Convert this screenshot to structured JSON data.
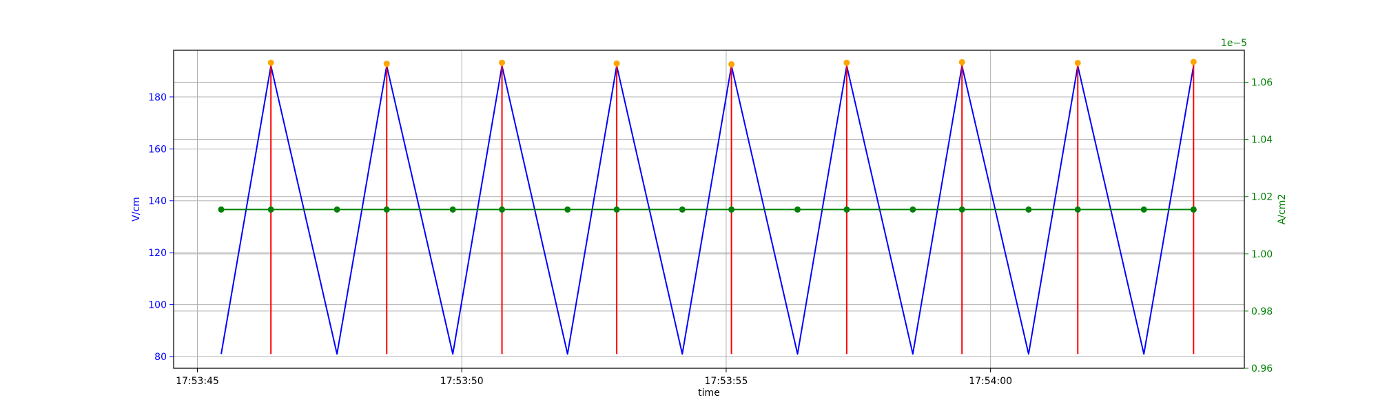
{
  "chart_data": {
    "type": "line",
    "xlabel": "time",
    "ylabel_left": "V/cm",
    "ylabel_right": "A/cm2",
    "right_axis_offset_label": "1e−5",
    "x_ticks": [
      "17:53:45",
      "17:53:50",
      "17:53:55",
      "17:54:00"
    ],
    "x_tick_seconds": [
      0,
      5,
      10,
      15
    ],
    "left_ticks": [
      80,
      100,
      120,
      140,
      160,
      180
    ],
    "right_ticks": [
      "0.96",
      "0.98",
      "1.00",
      "1.02",
      "1.04",
      "1.06"
    ],
    "xlim_seconds": [
      -0.45,
      19.8
    ],
    "ylim_left": [
      75.5,
      198
    ],
    "ylim_right": [
      0.96,
      1.0712
    ],
    "grid": true,
    "colors": {
      "voltage_line": "#0000ff",
      "current_line": "#008000",
      "peak_markers": "#ffa500",
      "peak_stems": "#ff0000",
      "left_axis": "#0000ff",
      "right_axis": "#008000"
    },
    "series": [
      {
        "axis": "left",
        "style": "line",
        "color": "#0000ff",
        "x": [
          0.45,
          1.39,
          2.64,
          3.58,
          4.83,
          5.76,
          7.0,
          7.93,
          9.17,
          10.1,
          11.35,
          12.28,
          13.53,
          14.46,
          15.72,
          16.65,
          17.9,
          18.84
        ],
        "y": [
          81,
          192,
          81,
          192,
          81,
          192,
          81,
          192,
          81,
          192,
          81,
          192,
          81,
          192,
          81,
          192,
          81,
          192
        ]
      },
      {
        "axis": "left",
        "style": "markers",
        "color": "#ffa500",
        "x": [
          1.39,
          3.58,
          5.76,
          7.93,
          10.1,
          12.28,
          14.46,
          16.65,
          18.84
        ],
        "y": [
          193.2,
          192.8,
          193.2,
          192.9,
          192.6,
          193.2,
          193.4,
          193.1,
          193.5
        ]
      },
      {
        "axis": "left",
        "style": "stems",
        "color": "#ff0000",
        "x": [
          1.39,
          3.58,
          5.76,
          7.93,
          10.1,
          12.28,
          14.46,
          16.65,
          18.84
        ],
        "y_bottom": 81,
        "y_top": [
          193.2,
          192.8,
          193.2,
          192.9,
          192.6,
          193.2,
          193.4,
          193.1,
          193.5
        ]
      },
      {
        "axis": "right",
        "style": "line-markers",
        "color": "#008000",
        "x": [
          0.45,
          1.39,
          2.64,
          3.58,
          4.83,
          5.76,
          7.0,
          7.93,
          9.17,
          10.1,
          11.35,
          12.28,
          13.53,
          14.46,
          15.72,
          16.65,
          17.9,
          18.84
        ],
        "y": [
          1.0155,
          1.0155,
          1.0155,
          1.0155,
          1.0155,
          1.0155,
          1.0155,
          1.0155,
          1.0155,
          1.0155,
          1.0155,
          1.0155,
          1.0155,
          1.0155,
          1.0155,
          1.0155,
          1.0155,
          1.0155
        ]
      }
    ]
  }
}
